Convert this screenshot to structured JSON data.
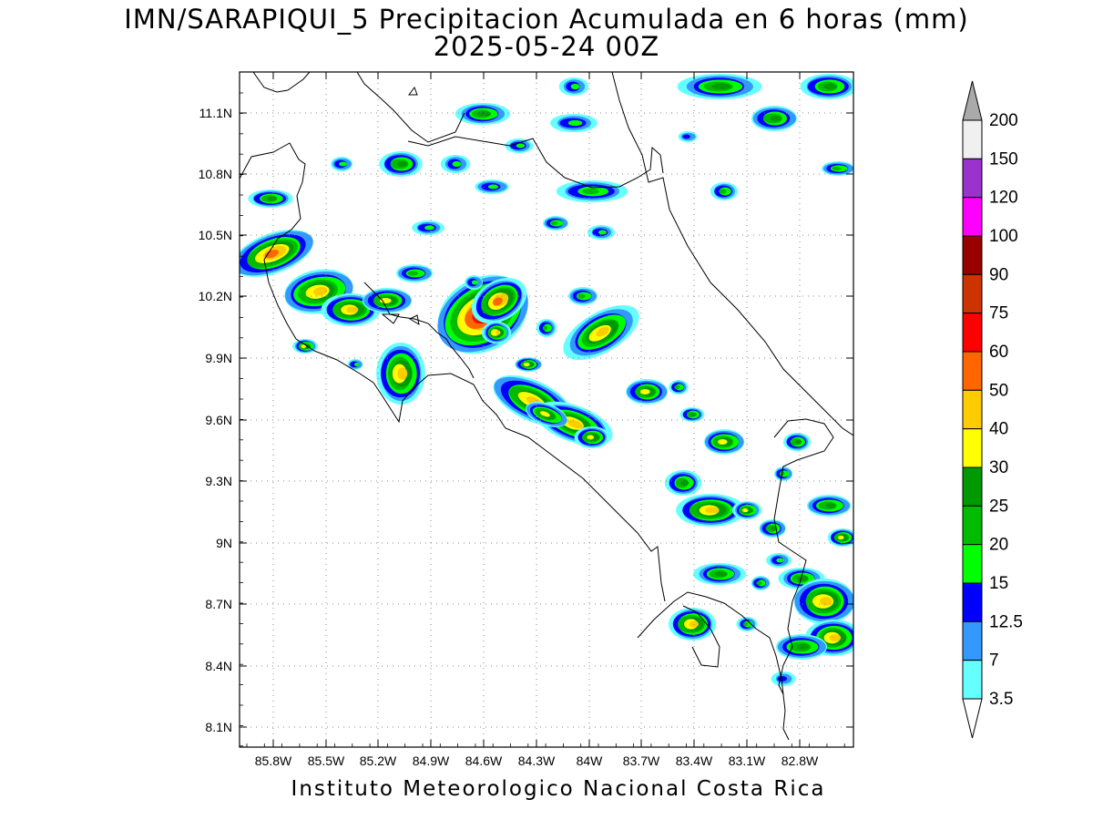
{
  "header": {
    "title": "IMN/SARAPIQUI_5 Precipitacion Acumulada en 6 horas (mm)",
    "subtitle": "2025-05-24 00Z"
  },
  "footer": {
    "credit": "Instituto Meteorologico Nacional Costa Rica"
  },
  "map": {
    "lat_ticks": [
      "11.1N",
      "10.8N",
      "10.5N",
      "10.2N",
      "9.9N",
      "9.6N",
      "9.3N",
      "9N",
      "8.7N",
      "8.4N",
      "8.1N"
    ],
    "lon_ticks": [
      "85.8W",
      "85.5W",
      "85.2W",
      "84.9W",
      "84.6W",
      "84.3W",
      "84W",
      "83.7W",
      "83.4W",
      "83.1W",
      "82.8W"
    ],
    "lon_range": [
      -85.97,
      -82.71
    ],
    "lat_range": [
      8.0,
      11.3
    ],
    "grid": true
  },
  "legend": {
    "labels": [
      "200",
      "150",
      "120",
      "100",
      "90",
      "75",
      "60",
      "50",
      "40",
      "30",
      "25",
      "20",
      "15",
      "12.5",
      "7",
      "3.5"
    ],
    "colors": [
      "#f0f0f0",
      "#9933cc",
      "#ff00ff",
      "#990000",
      "#cc3300",
      "#ff0000",
      "#ff6600",
      "#ffcc00",
      "#ffff00",
      "#009900",
      "#00bb00",
      "#00ff00",
      "#0000ff",
      "#3399ff",
      "#66ffff"
    ],
    "overflow_color": "#aaaaaa"
  }
}
